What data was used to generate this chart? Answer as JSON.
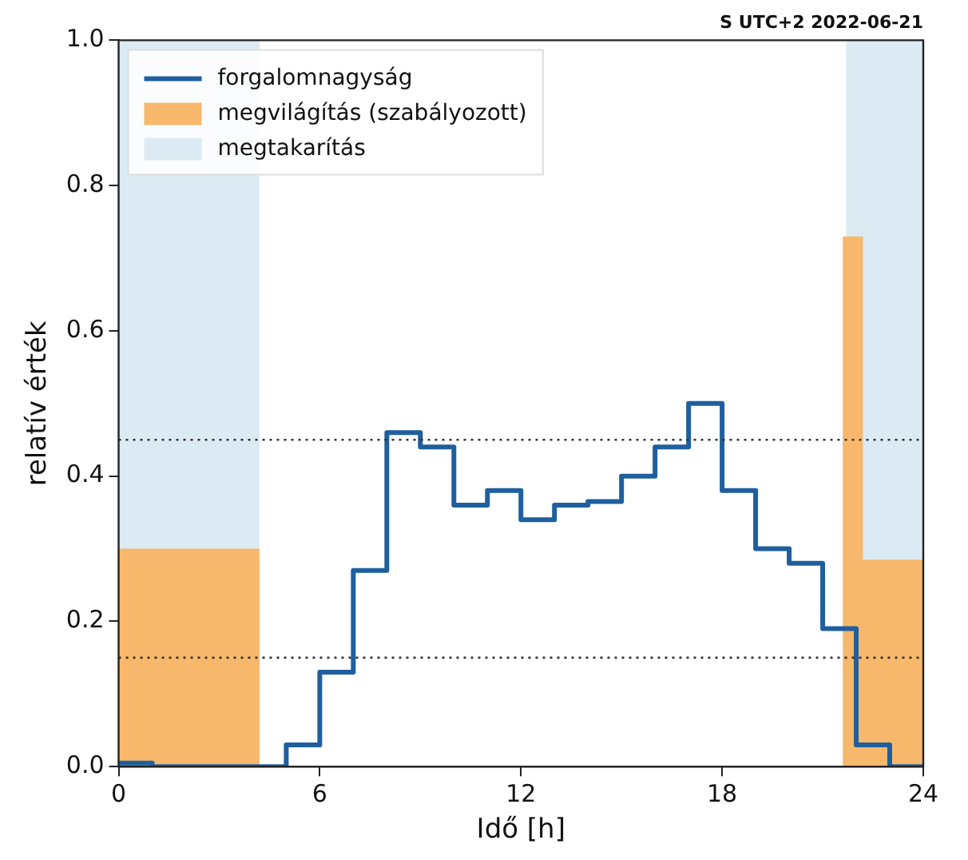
{
  "chart_data": {
    "type": "step",
    "title": "S UTC+2 2022-06-21",
    "xlabel": "Idő [h]",
    "ylabel": "relatív érték",
    "x": [
      0,
      1,
      2,
      3,
      4,
      5,
      6,
      7,
      8,
      9,
      10,
      11,
      12,
      13,
      14,
      15,
      16,
      17,
      18,
      19,
      20,
      21,
      22,
      23,
      24
    ],
    "series": [
      {
        "name": "forgalomnagyság",
        "color": "#1f5f9e",
        "values": [
          0.005,
          0,
          0,
          0,
          0,
          0.03,
          0.13,
          0.27,
          0.46,
          0.44,
          0.36,
          0.38,
          0.34,
          0.36,
          0.365,
          0.4,
          0.44,
          0.5,
          0.38,
          0.3,
          0.28,
          0.19,
          0.03,
          0,
          0
        ]
      },
      {
        "name": "megvilágítás (szabályozott)",
        "type": "area",
        "color": "#f7b86c",
        "x": [
          0,
          4.2,
          4.2,
          21.6,
          21.6,
          22.2,
          22.2,
          24
        ],
        "values": [
          0.3,
          0.3,
          0,
          0,
          0.73,
          0.73,
          0.285,
          0.285
        ]
      },
      {
        "name": "megtakarítás",
        "type": "area",
        "color": "#dcebf3",
        "x": [
          0,
          4.2,
          4.2,
          21.7,
          21.7,
          24
        ],
        "values": [
          1,
          1,
          0,
          0,
          1,
          1
        ]
      }
    ],
    "xlim": [
      0,
      24
    ],
    "xticks": [
      0,
      6,
      12,
      18,
      24
    ],
    "ylim": [
      0,
      1
    ],
    "yticks": [
      {
        "value": 0,
        "label": "0.0"
      },
      {
        "value": 0.2,
        "label": "0.2"
      },
      {
        "value": 0.4,
        "label": "0.4"
      },
      {
        "value": 0.6,
        "label": "0.6"
      },
      {
        "value": 0.8,
        "label": "0.8"
      },
      {
        "value": 1,
        "label": "1.0"
      }
    ],
    "ref_lines": [
      {
        "axis": "y",
        "value": 0.45,
        "color": "#333333",
        "line_style": "dotted"
      },
      {
        "axis": "y",
        "value": 0.15,
        "color": "#333333",
        "line_style": "dotted"
      }
    ],
    "grid": false,
    "legend": "top left",
    "marker": "none"
  }
}
